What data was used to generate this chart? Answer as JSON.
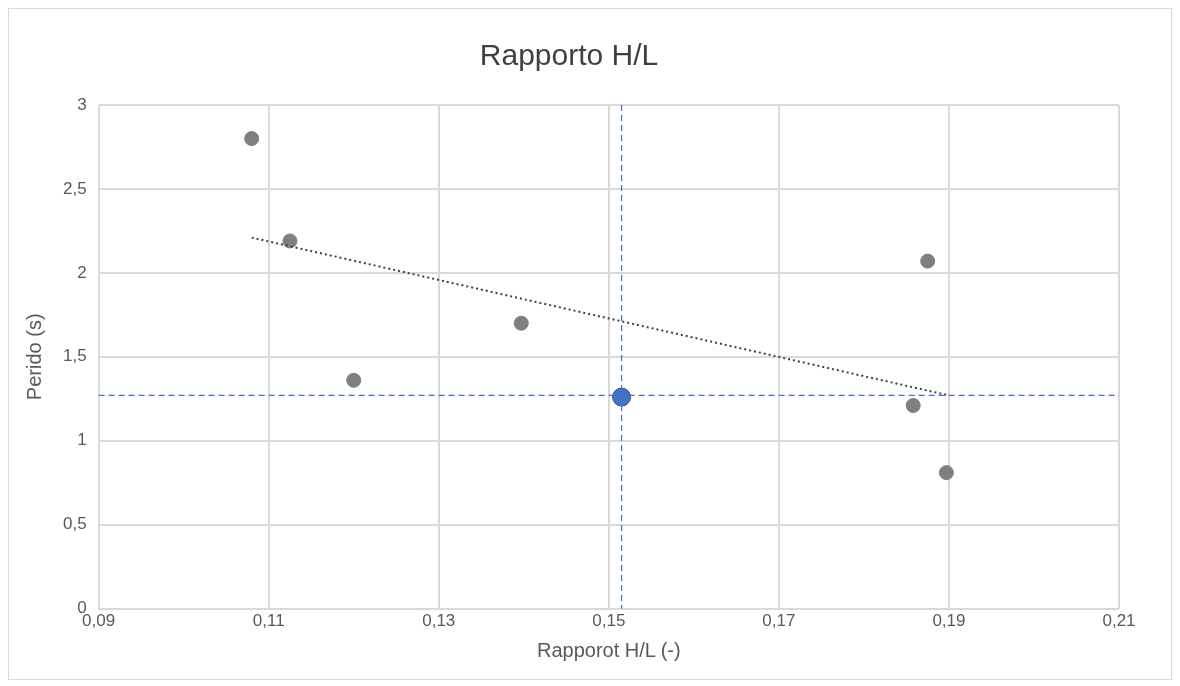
{
  "chart_data": {
    "type": "scatter",
    "title": "Rapporto H/L",
    "xlabel": "Rapporot H/L (-)",
    "ylabel": "Perido (s)",
    "xlim": [
      0.09,
      0.21
    ],
    "xticks": [
      {
        "value": 0.09,
        "label": "0,09"
      },
      {
        "value": 0.11,
        "label": "0,11"
      },
      {
        "value": 0.13,
        "label": "0,13"
      },
      {
        "value": 0.15,
        "label": "0,15"
      },
      {
        "value": 0.17,
        "label": "0,17"
      },
      {
        "value": 0.19,
        "label": "0,19"
      },
      {
        "value": 0.21,
        "label": "0,21"
      }
    ],
    "ylim": [
      0,
      3
    ],
    "yticks": [
      0,
      {
        "value": 0.5,
        "label": "0,5"
      },
      1,
      {
        "value": 1.5,
        "label": "1,5"
      },
      2,
      {
        "value": 2.5,
        "label": "2,5"
      },
      3
    ],
    "grid": true,
    "marker": "circle",
    "series": [
      {
        "type": "scatter",
        "color": "#7f7f7f",
        "x": [
          0.108,
          0.1125,
          0.12,
          0.1397,
          0.1875,
          0.1858,
          0.1897
        ],
        "values": [
          2.8,
          2.19,
          1.36,
          1.7,
          2.07,
          1.21,
          0.81
        ]
      },
      {
        "type": "scatter",
        "color": "#4472c4",
        "x": [
          0.1515
        ],
        "values": [
          1.26
        ]
      },
      {
        "type": "line",
        "color": "#404040",
        "line_style": "dotted",
        "marker": "none",
        "x": [
          0.108,
          0.19
        ],
        "values": [
          2.21,
          1.27
        ]
      }
    ],
    "ref_lines": [
      {
        "axis": "x",
        "value": 0.1515,
        "color": "#4472c4",
        "line_style": "dashed"
      },
      {
        "axis": "y",
        "value": 1.27,
        "color": "#4472c4",
        "line_style": "dashed"
      }
    ]
  }
}
